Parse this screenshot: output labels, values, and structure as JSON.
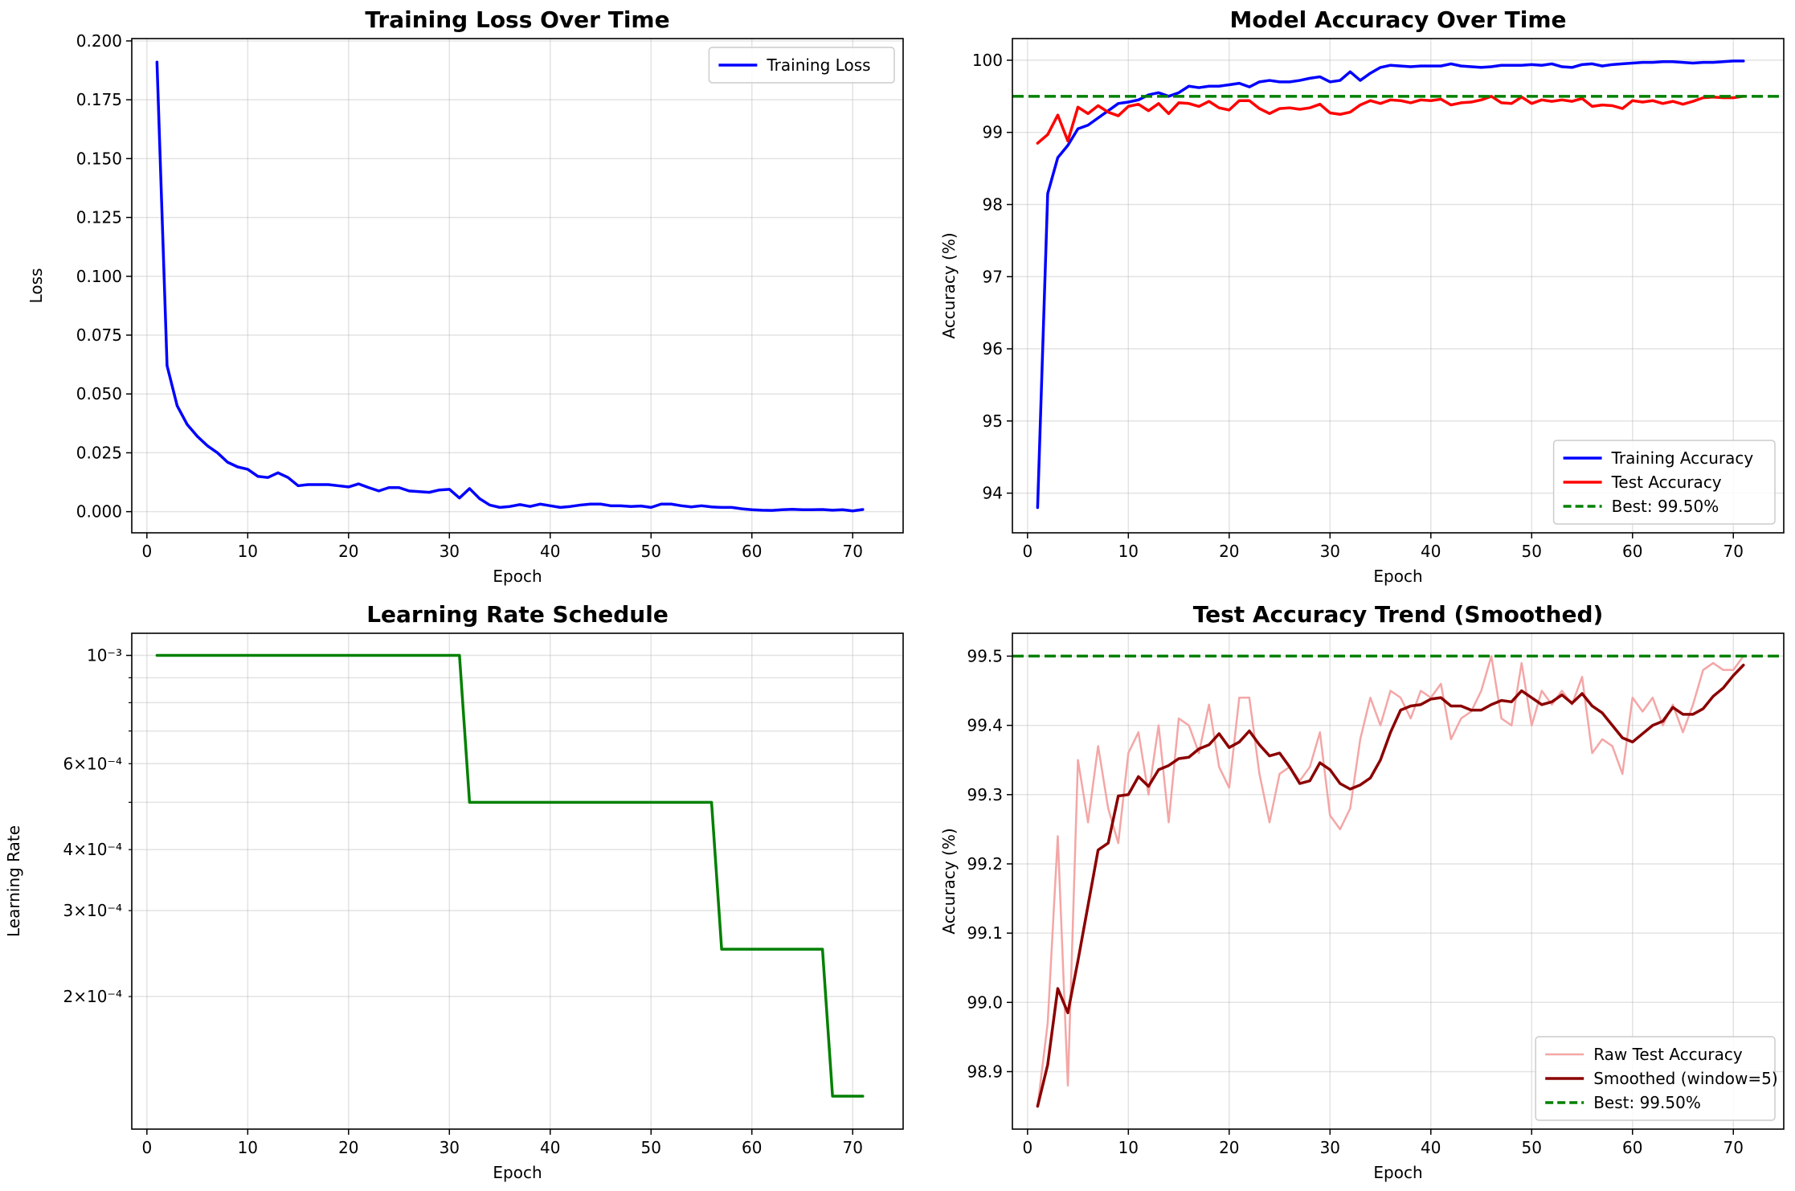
{
  "chart_data": [
    {
      "type": "line",
      "title": "Training Loss Over Time",
      "xlabel": "Epoch",
      "ylabel": "Loss",
      "xlim": [
        -1.5,
        75
      ],
      "ylim": [
        -0.009,
        0.201
      ],
      "x_ticks": [
        0,
        10,
        20,
        30,
        40,
        50,
        60,
        70
      ],
      "y_ticks": [
        0.0,
        0.025,
        0.05,
        0.075,
        0.1,
        0.125,
        0.15,
        0.175,
        0.2
      ],
      "y_tick_labels": [
        "0.000",
        "0.025",
        "0.050",
        "0.075",
        "0.100",
        "0.125",
        "0.150",
        "0.175",
        "0.200"
      ],
      "grid": true,
      "legend_position": "top-right",
      "series": [
        {
          "name": "Training Loss",
          "color": "#0000ff",
          "x_start": 1,
          "values": [
            0.191,
            0.062,
            0.045,
            0.037,
            0.032,
            0.028,
            0.025,
            0.021,
            0.019,
            0.018,
            0.015,
            0.0145,
            0.0165,
            0.0145,
            0.011,
            0.0115,
            0.0115,
            0.0115,
            0.011,
            0.0105,
            0.0118,
            0.0102,
            0.0088,
            0.0102,
            0.0102,
            0.0088,
            0.0085,
            0.0082,
            0.0092,
            0.0095,
            0.0058,
            0.0098,
            0.0055,
            0.0028,
            0.0018,
            0.0022,
            0.003,
            0.0022,
            0.0032,
            0.0025,
            0.0018,
            0.0022,
            0.0028,
            0.0032,
            0.0032,
            0.0025,
            0.0025,
            0.0022,
            0.0024,
            0.0018,
            0.0032,
            0.0032,
            0.0025,
            0.002,
            0.0025,
            0.002,
            0.0018,
            0.0018,
            0.0012,
            0.0008,
            0.0006,
            0.0005,
            0.0008,
            0.001,
            0.0008,
            0.0008,
            0.0009,
            0.0006,
            0.0008,
            0.0003,
            0.0009
          ]
        }
      ]
    },
    {
      "type": "line",
      "title": "Model Accuracy Over Time",
      "xlabel": "Epoch",
      "ylabel": "Accuracy (%)",
      "xlim": [
        -1.5,
        75
      ],
      "ylim": [
        93.45,
        100.3
      ],
      "x_ticks": [
        0,
        10,
        20,
        30,
        40,
        50,
        60,
        70
      ],
      "y_ticks": [
        94,
        95,
        96,
        97,
        98,
        99,
        100
      ],
      "y_tick_labels": [
        "94",
        "95",
        "96",
        "97",
        "98",
        "99",
        "100"
      ],
      "grid": true,
      "legend_position": "bottom-right",
      "hlines": [
        {
          "name": "Best: 99.50%",
          "value": 99.5,
          "color": "#008000"
        }
      ],
      "series": [
        {
          "name": "Training Accuracy",
          "color": "#0000ff",
          "x_start": 1,
          "values": [
            93.8,
            98.15,
            98.65,
            98.82,
            99.05,
            99.1,
            99.2,
            99.3,
            99.4,
            99.42,
            99.45,
            99.52,
            99.55,
            99.5,
            99.55,
            99.64,
            99.62,
            99.64,
            99.64,
            99.66,
            99.68,
            99.63,
            99.7,
            99.72,
            99.7,
            99.7,
            99.72,
            99.75,
            99.77,
            99.7,
            99.72,
            99.84,
            99.72,
            99.82,
            99.9,
            99.93,
            99.92,
            99.91,
            99.92,
            99.92,
            99.92,
            99.95,
            99.92,
            99.91,
            99.9,
            99.91,
            99.93,
            99.93,
            99.93,
            99.94,
            99.93,
            99.95,
            99.91,
            99.9,
            99.94,
            99.95,
            99.92,
            99.94,
            99.95,
            99.96,
            99.97,
            99.97,
            99.98,
            99.98,
            99.97,
            99.96,
            99.97,
            99.97,
            99.98,
            99.99,
            99.99
          ]
        },
        {
          "name": "Test Accuracy",
          "color": "#ff0000",
          "x_start": 1,
          "values": [
            98.85,
            98.97,
            99.24,
            98.88,
            99.35,
            99.26,
            99.37,
            99.28,
            99.23,
            99.36,
            99.39,
            99.3,
            99.4,
            99.26,
            99.41,
            99.4,
            99.36,
            99.43,
            99.34,
            99.31,
            99.44,
            99.44,
            99.33,
            99.26,
            99.33,
            99.34,
            99.32,
            99.34,
            99.39,
            99.27,
            99.25,
            99.28,
            99.38,
            99.44,
            99.4,
            99.45,
            99.44,
            99.41,
            99.45,
            99.44,
            99.46,
            99.38,
            99.41,
            99.42,
            99.45,
            99.5,
            99.41,
            99.4,
            99.49,
            99.4,
            99.45,
            99.43,
            99.45,
            99.43,
            99.47,
            99.36,
            99.38,
            99.37,
            99.33,
            99.44,
            99.42,
            99.44,
            99.4,
            99.43,
            99.39,
            99.43,
            99.48,
            99.49,
            99.48,
            99.48,
            99.5
          ]
        }
      ]
    },
    {
      "type": "line",
      "title": "Learning Rate Schedule",
      "xlabel": "Epoch",
      "ylabel": "Learning Rate",
      "scale_y": "log",
      "xlim": [
        -1.5,
        75
      ],
      "ylim": [
        0.000107,
        0.00111
      ],
      "x_ticks": [
        0,
        10,
        20,
        30,
        40,
        50,
        60,
        70
      ],
      "y_major_ticks": [
        0.001
      ],
      "y_major_tick_labels": [
        "10⁻³"
      ],
      "y_minor_ticks": [
        0.0002,
        0.0003,
        0.0004,
        0.0005,
        0.0006,
        0.0007,
        0.0008,
        0.0009
      ],
      "y_minor_labeled": [
        0.0002,
        0.0003,
        0.0004,
        0.0006
      ],
      "y_minor_tick_labels": [
        "2×10⁻⁴",
        "3×10⁻⁴",
        "4×10⁻⁴",
        "6×10⁻⁴"
      ],
      "grid": true,
      "series": [
        {
          "name": "",
          "color": "#008000",
          "x": [
            1,
            31,
            32,
            56,
            57,
            67,
            68,
            71
          ],
          "values": [
            0.001,
            0.001,
            0.0005,
            0.0005,
            0.00025,
            0.00025,
            0.000125,
            0.000125
          ]
        }
      ]
    },
    {
      "type": "line",
      "title": "Test Accuracy Trend (Smoothed)",
      "xlabel": "Epoch",
      "ylabel": "Accuracy (%)",
      "xlim": [
        -1.5,
        75
      ],
      "ylim": [
        98.817,
        99.533
      ],
      "x_ticks": [
        0,
        10,
        20,
        30,
        40,
        50,
        60,
        70
      ],
      "y_ticks": [
        98.9,
        99.0,
        99.1,
        99.2,
        99.3,
        99.4,
        99.5
      ],
      "y_tick_labels": [
        "98.9",
        "99.0",
        "99.1",
        "99.2",
        "99.3",
        "99.4",
        "99.5"
      ],
      "grid": true,
      "legend_position": "bottom-right",
      "hlines": [
        {
          "name": "Best: 99.50%",
          "value": 99.5,
          "color": "#008000"
        }
      ],
      "series": [
        {
          "name": "Raw Test Accuracy",
          "color": "#f4a6a6",
          "x_start": 1,
          "values": [
            98.85,
            98.97,
            99.24,
            98.88,
            99.35,
            99.26,
            99.37,
            99.28,
            99.23,
            99.36,
            99.39,
            99.3,
            99.4,
            99.26,
            99.41,
            99.4,
            99.36,
            99.43,
            99.34,
            99.31,
            99.44,
            99.44,
            99.33,
            99.26,
            99.33,
            99.34,
            99.32,
            99.34,
            99.39,
            99.27,
            99.25,
            99.28,
            99.38,
            99.44,
            99.4,
            99.45,
            99.44,
            99.41,
            99.45,
            99.44,
            99.46,
            99.38,
            99.41,
            99.42,
            99.45,
            99.5,
            99.41,
            99.4,
            99.49,
            99.4,
            99.45,
            99.43,
            99.45,
            99.43,
            99.47,
            99.36,
            99.38,
            99.37,
            99.33,
            99.44,
            99.42,
            99.44,
            99.4,
            99.43,
            99.39,
            99.43,
            99.48,
            99.49,
            99.48,
            99.48,
            99.5
          ]
        },
        {
          "name": "Smoothed (window=5)",
          "color": "#8b0000",
          "x_start": 1,
          "values": [
            98.85,
            98.91,
            99.02,
            98.985,
            99.06,
            99.14,
            99.22,
            99.23,
            99.298,
            99.3,
            99.326,
            99.312,
            99.336,
            99.342,
            99.352,
            99.354,
            99.366,
            99.372,
            99.388,
            99.368,
            99.376,
            99.392,
            99.372,
            99.356,
            99.36,
            99.34,
            99.316,
            99.32,
            99.346,
            99.336,
            99.316,
            99.308,
            99.314,
            99.324,
            99.35,
            99.39,
            99.422,
            99.428,
            99.43,
            99.438,
            99.44,
            99.428,
            99.428,
            99.422,
            99.422,
            99.43,
            99.436,
            99.434,
            99.45,
            99.44,
            99.43,
            99.434,
            99.444,
            99.432,
            99.446,
            99.428,
            99.418,
            99.4,
            99.382,
            99.376,
            99.388,
            99.4,
            99.406,
            99.426,
            99.416,
            99.416,
            99.424,
            99.442,
            99.454,
            99.472,
            99.487
          ]
        }
      ]
    }
  ]
}
